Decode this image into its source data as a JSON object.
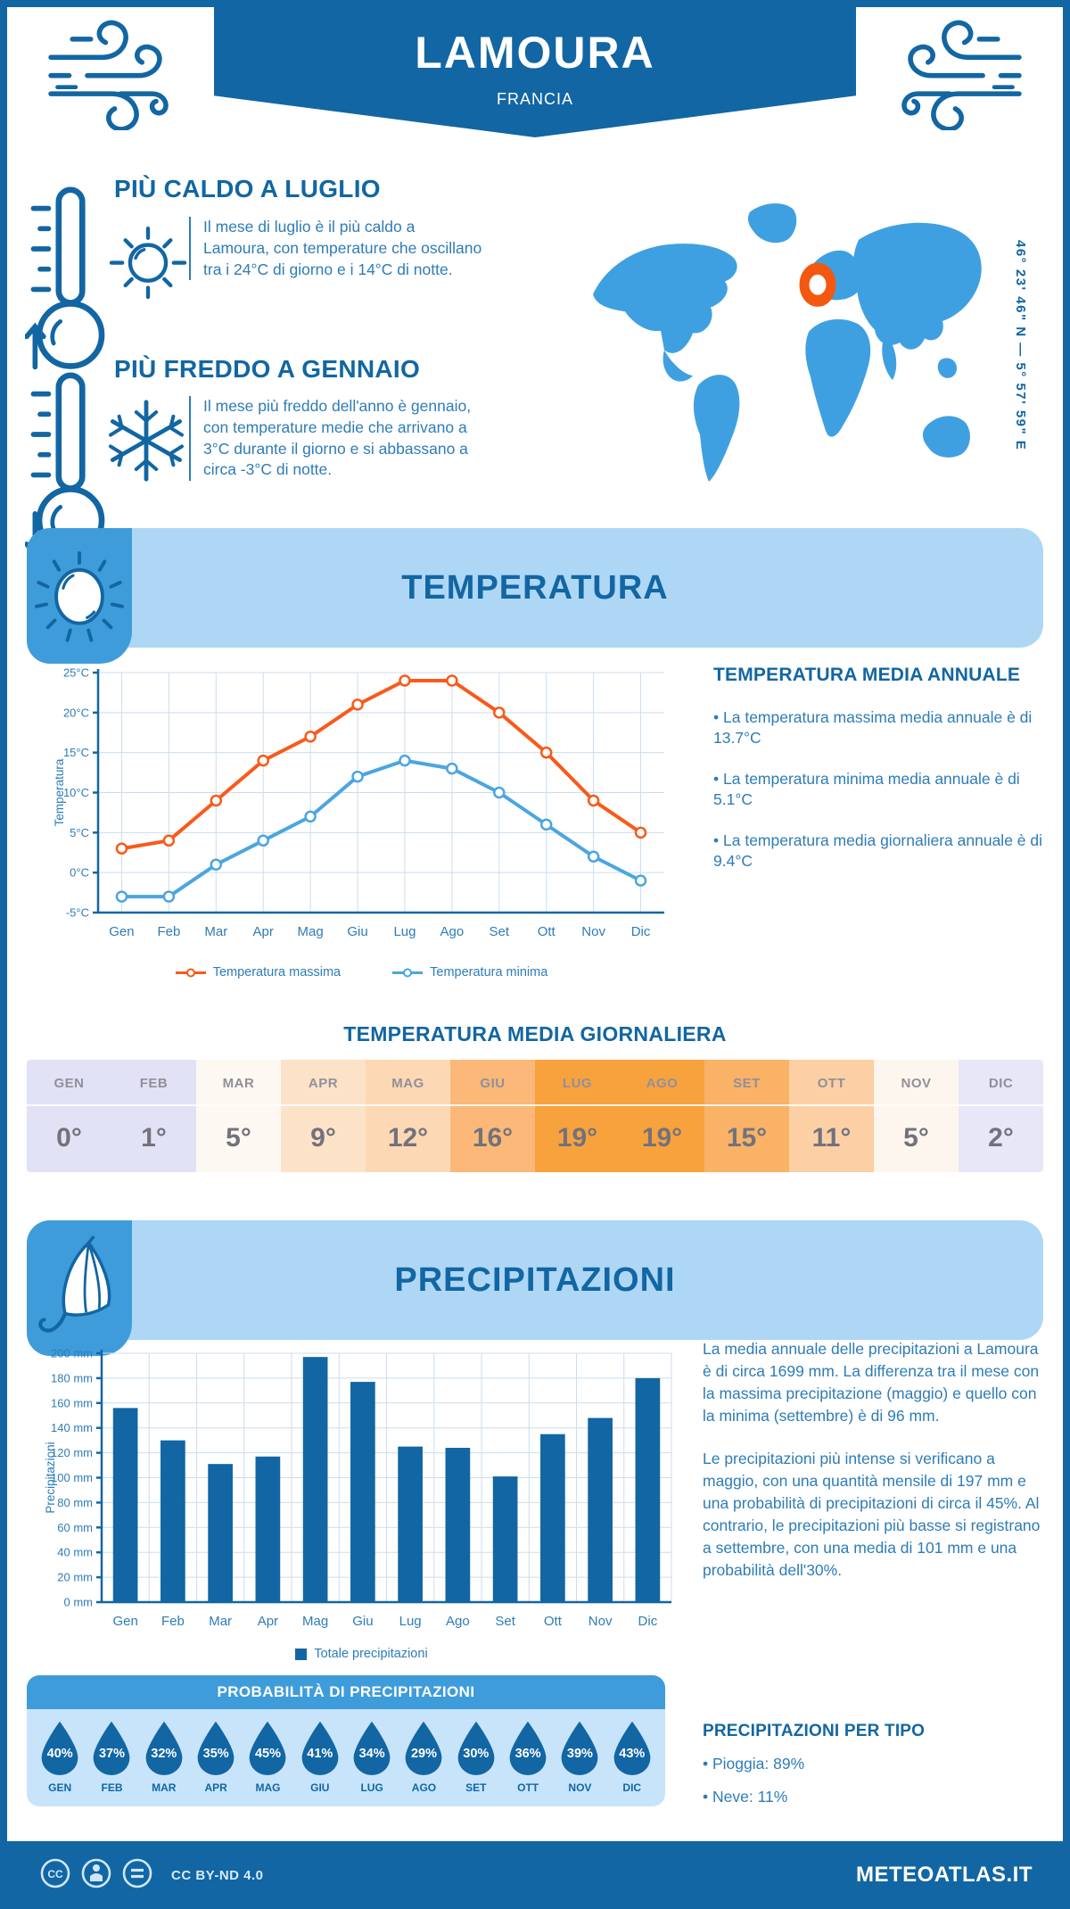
{
  "header": {
    "title": "LAMOURA",
    "subtitle": "FRANCIA"
  },
  "coordinates": "46° 23' 46\" N — 5° 57' 59\" E",
  "highlights": {
    "warm": {
      "title": "PIÙ CALDO A LUGLIO",
      "text": "Il mese di luglio è il più caldo a Lamoura, con temperature che oscillano tra i 24°C di giorno e i 14°C di notte."
    },
    "cold": {
      "title": "PIÙ FREDDO A GENNAIO",
      "text": "Il mese più freddo dell'anno è gennaio, con temperature medie che arrivano a 3°C durante il giorno e si abbassano a circa -3°C di notte."
    }
  },
  "temperature_section": {
    "title": "TEMPERATURA",
    "annual": {
      "heading": "TEMPERATURA MEDIA ANNUALE",
      "bullets": [
        "La temperatura massima media annuale è di 13.7°C",
        "La temperatura minima media annuale è di 5.1°C",
        "La temperatura media giornaliera annuale è di 9.4°C"
      ]
    },
    "daily_heading": "TEMPERATURA MEDIA GIORNALIERA",
    "table": {
      "months": [
        "GEN",
        "FEB",
        "MAR",
        "APR",
        "MAG",
        "GIU",
        "LUG",
        "AGO",
        "SET",
        "OTT",
        "NOV",
        "DIC"
      ],
      "values": [
        "0°",
        "1°",
        "5°",
        "9°",
        "12°",
        "16°",
        "19°",
        "19°",
        "15°",
        "11°",
        "5°",
        "2°"
      ],
      "colors": [
        "#e2e2f6",
        "#e2e2f6",
        "#fdf8f1",
        "#fce3c7",
        "#fdd8b4",
        "#fbb878",
        "#f8a23e",
        "#f8a23e",
        "#f9b266",
        "#fcd0a4",
        "#fdf6ee",
        "#e7e7f8"
      ]
    }
  },
  "precipitation_section": {
    "title": "PRECIPITAZIONI",
    "paragraphs": [
      "La media annuale delle precipitazioni a Lamoura è di circa 1699 mm. La differenza tra il mese con la massima precipitazione (maggio) e quello con la minima (settembre) è di 96 mm.",
      "Le precipitazioni più intense si verificano a maggio, con una quantità mensile di 197 mm e una probabilità di precipitazioni di circa il 45%. Al contrario, le precipitazioni più basse si registrano a settembre, con una media di 101 mm e una probabilità dell'30%."
    ],
    "probability": {
      "title": "PROBABILITÀ DI PRECIPITAZIONI",
      "months": [
        "GEN",
        "FEB",
        "MAR",
        "APR",
        "MAG",
        "GIU",
        "LUG",
        "AGO",
        "SET",
        "OTT",
        "NOV",
        "DIC"
      ],
      "values": [
        "40%",
        "37%",
        "32%",
        "35%",
        "45%",
        "41%",
        "34%",
        "29%",
        "30%",
        "36%",
        "39%",
        "43%"
      ]
    },
    "by_type": {
      "heading": "PRECIPITAZIONI PER TIPO",
      "bullets": [
        "Pioggia: 89%",
        "Neve: 11%"
      ]
    }
  },
  "chart_data": [
    {
      "type": "line",
      "categories": [
        "Gen",
        "Feb",
        "Mar",
        "Apr",
        "Mag",
        "Giu",
        "Lug",
        "Ago",
        "Set",
        "Ott",
        "Nov",
        "Dic"
      ],
      "series": [
        {
          "name": "Temperatura massima",
          "color": "#f85a19",
          "values": [
            3,
            4,
            9,
            14,
            17,
            21,
            24,
            24,
            20,
            15,
            9,
            5
          ]
        },
        {
          "name": "Temperatura minima",
          "color": "#4ba5e1",
          "values": [
            -3,
            -3,
            1,
            4,
            7,
            12,
            14,
            13,
            10,
            6,
            2,
            -1
          ]
        }
      ],
      "ylabel": "Temperatura",
      "ylim": [
        -5,
        25
      ],
      "ytick_step": 5,
      "ytick_suffix": "°C",
      "grid": true,
      "legend_position": "bottom"
    },
    {
      "type": "bar",
      "categories": [
        "Gen",
        "Feb",
        "Mar",
        "Apr",
        "Mag",
        "Giu",
        "Lug",
        "Ago",
        "Set",
        "Ott",
        "Nov",
        "Dic"
      ],
      "series": [
        {
          "name": "Totale precipitazioni",
          "color": "#1266a3",
          "values": [
            156,
            130,
            111,
            117,
            197,
            177,
            125,
            124,
            101,
            135,
            148,
            180
          ]
        }
      ],
      "ylabel": "Precipitazioni",
      "ylim": [
        0,
        200
      ],
      "ytick_step": 20,
      "ytick_suffix": " mm",
      "grid": true,
      "legend_position": "bottom"
    }
  ],
  "colors": {
    "brand_dark": "#1266a3",
    "brand_medium": "#3f9cda",
    "banner_light": "#aed7f5",
    "prob_body": "#c8e4fb",
    "map_blue": "#3fa0e1",
    "accent_orange": "#f85a19",
    "text_blue": "#2e7cb7",
    "grid_line": "#ccdded"
  },
  "footer": {
    "license": "CC BY-ND 4.0",
    "site": "METEOATLAS.IT"
  }
}
